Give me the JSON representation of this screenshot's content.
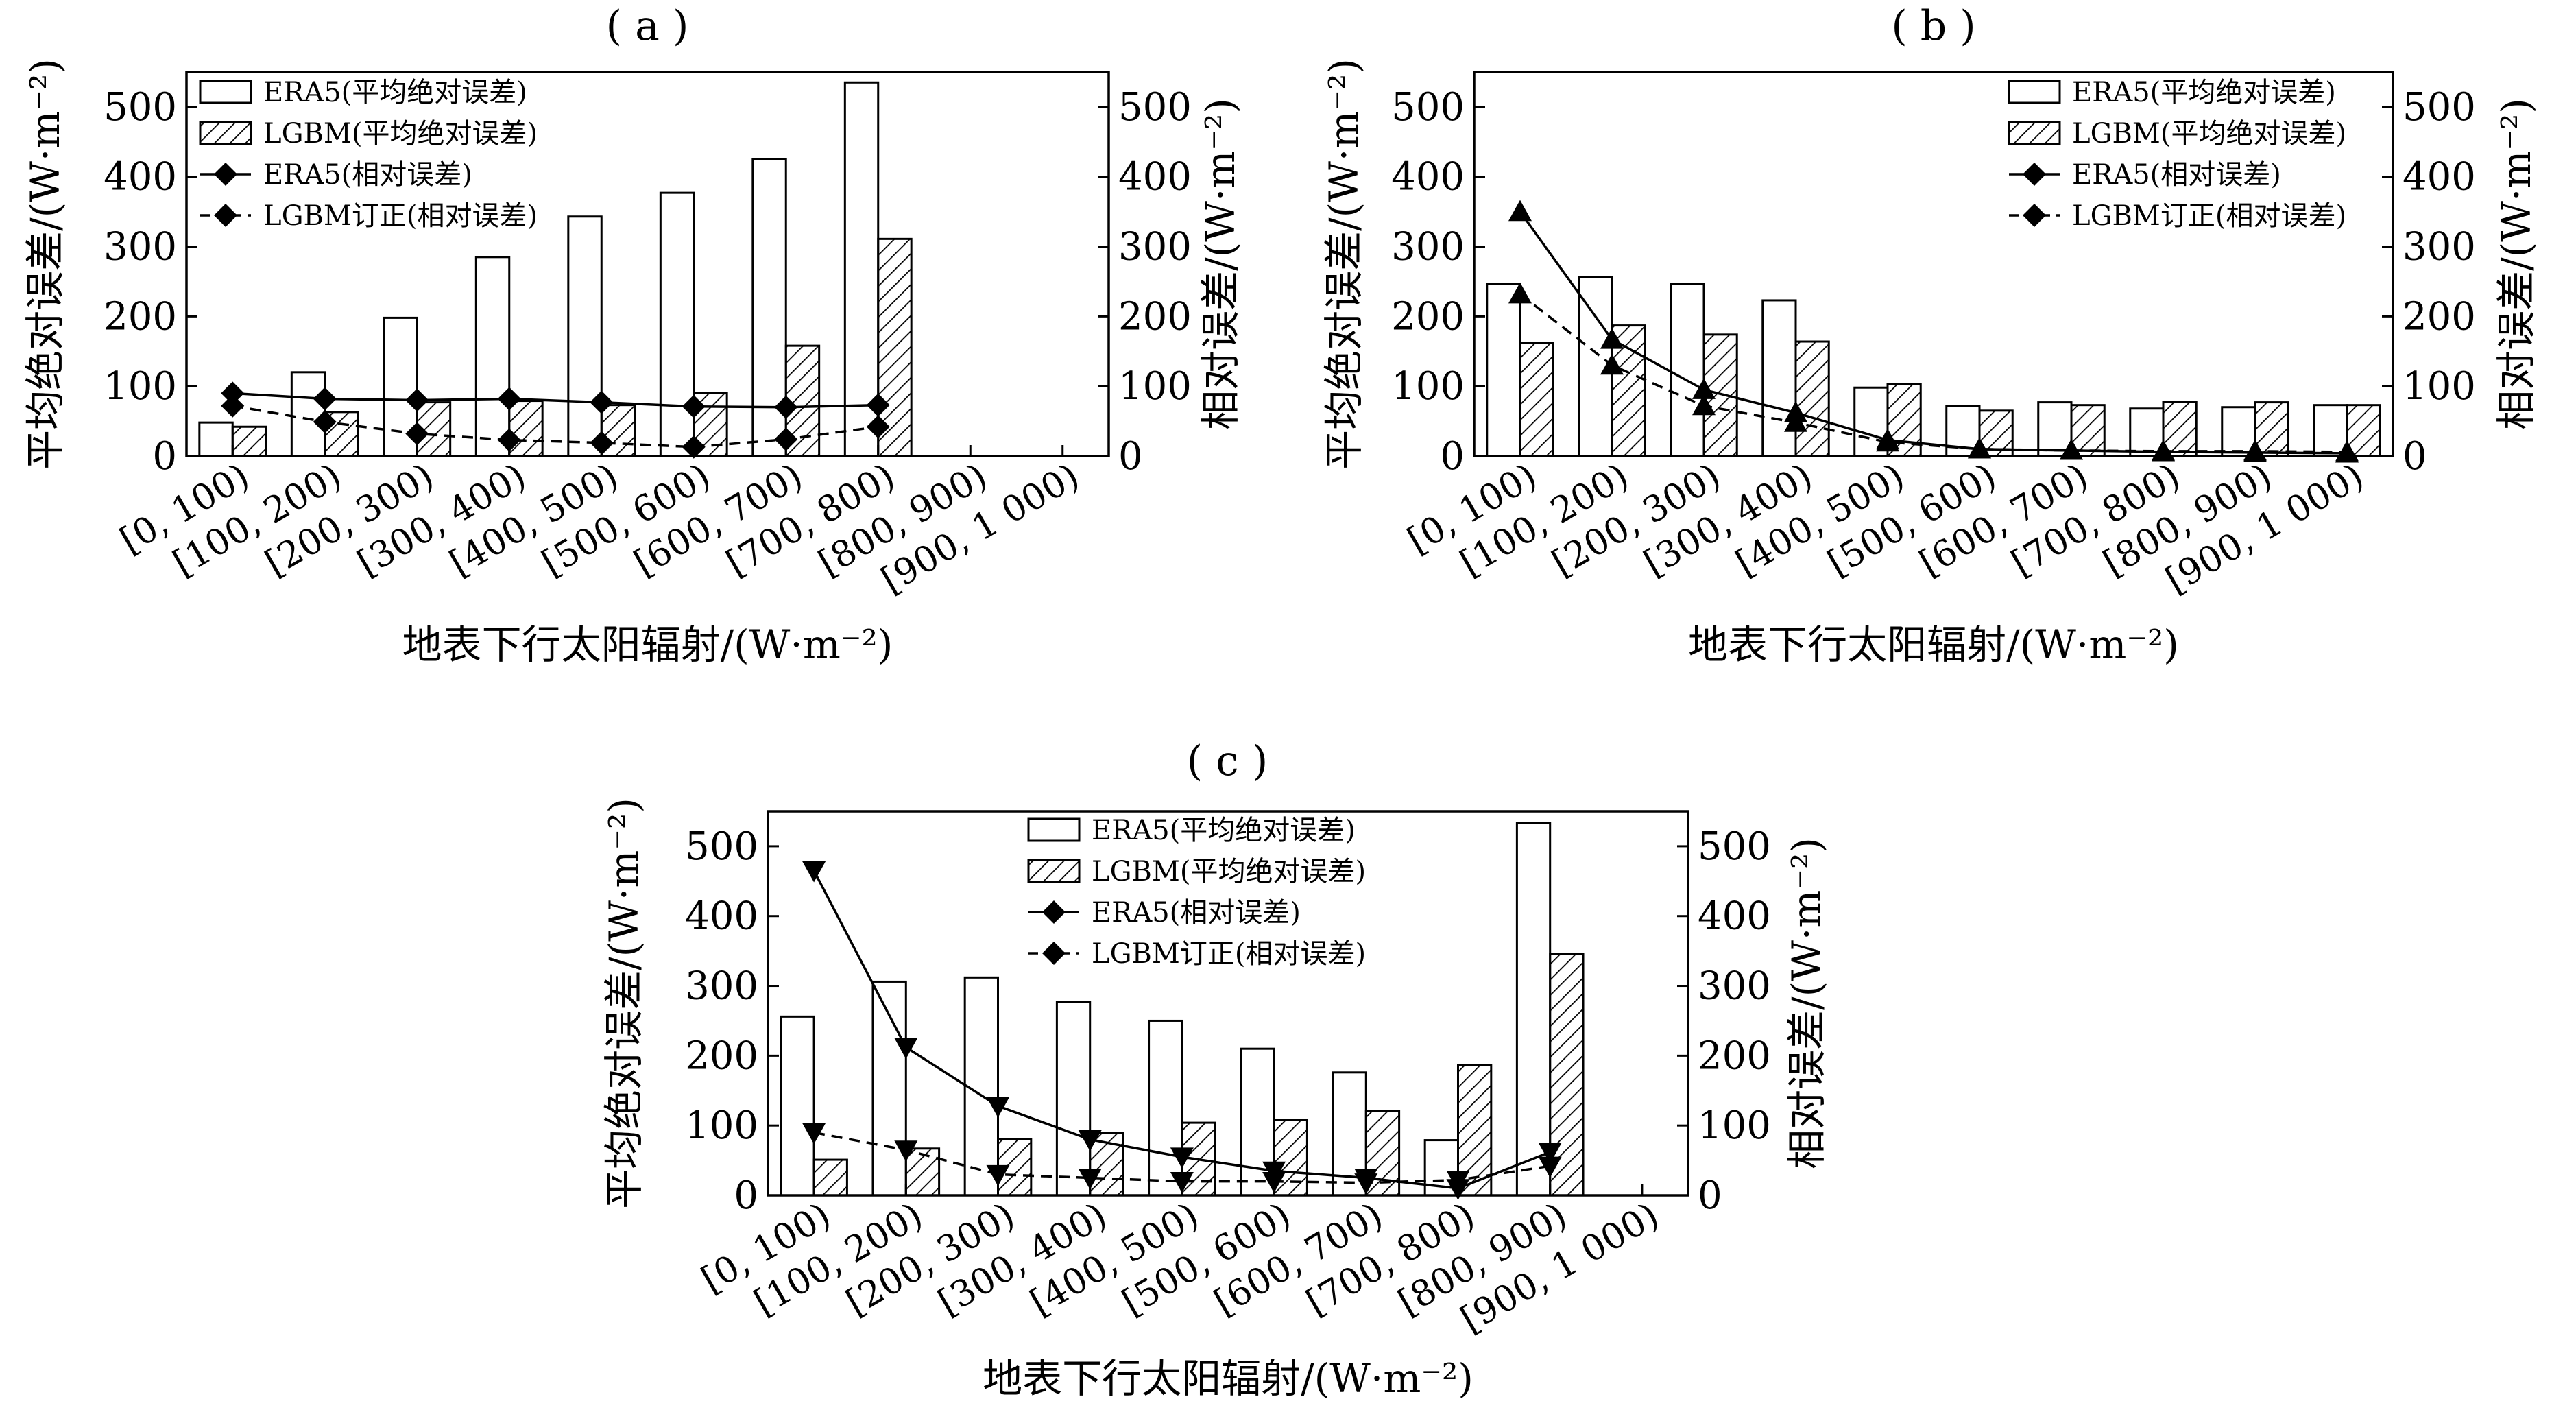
{
  "panels": [
    {
      "title": "( a )",
      "left_axis_label": "平均绝对误差/(W·m⁻²)",
      "right_axis_label": "相对误差/(W·m⁻²)",
      "x_axis_label": "地表下行太阳辐射/(W·m⁻²)",
      "legend_align": "left",
      "marker": "diamond"
    },
    {
      "title": "( b )",
      "left_axis_label": "平均绝对误差/(W·m⁻²)",
      "right_axis_label": "相对误差/(W·m⁻²)",
      "x_axis_label": "地表下行太阳辐射/(W·m⁻²)",
      "legend_align": "right",
      "marker": "triangle-up"
    },
    {
      "title": "( c )",
      "left_axis_label": "平均绝对误差/(W·m⁻²)",
      "right_axis_label": "相对误差/(W·m⁻²)",
      "x_axis_label": "地表下行太阳辐射/(W·m⁻²)",
      "legend_align": "left",
      "marker": "triangle-down"
    }
  ],
  "legend": {
    "era5_mae": "ERA5(平均绝对误差)",
    "lgbm_mae": "LGBM(平均绝对误差)",
    "era5_rel": "ERA5(相对误差)",
    "lgbm_rel": "LGBM订正(相对误差)"
  },
  "chart_data": [
    {
      "type": "bar",
      "title": "( a )",
      "categories": [
        "[0, 100)",
        "[100, 200)",
        "[200, 300)",
        "[300, 400)",
        "[400, 500)",
        "[500, 600)",
        "[600, 700)",
        "[700, 800)",
        "[800, 900)",
        "[900, 1 000)"
      ],
      "ylim": [
        0,
        550
      ],
      "y2lim": [
        0,
        550
      ],
      "yticks": [
        0,
        100,
        200,
        300,
        400,
        500
      ],
      "xlabel": "地表下行太阳辐射/(W·m⁻²)",
      "ylabel": "平均绝对误差/(W·m⁻²)",
      "y2label": "相对误差/(W·m⁻²)",
      "series": [
        {
          "name": "ERA5(平均绝对误差)",
          "kind": "bar",
          "values": [
            48,
            120,
            198,
            285,
            343,
            377,
            425,
            535,
            null,
            null
          ]
        },
        {
          "name": "LGBM(平均绝对误差)",
          "kind": "bar",
          "values": [
            42,
            63,
            77,
            79,
            73,
            90,
            158,
            311,
            null,
            null
          ]
        },
        {
          "name": "ERA5(相对误差)",
          "kind": "line",
          "values": [
            90,
            82,
            80,
            82,
            77,
            71,
            70,
            73,
            null,
            null
          ]
        },
        {
          "name": "LGBM订正(相对误差)",
          "kind": "line",
          "values": [
            72,
            49,
            32,
            23,
            19,
            13,
            24,
            42,
            null,
            null
          ]
        }
      ]
    },
    {
      "type": "bar",
      "title": "( b )",
      "categories": [
        "[0, 100)",
        "[100, 200)",
        "[200, 300)",
        "[300, 400)",
        "[400, 500)",
        "[500, 600)",
        "[600, 700)",
        "[700, 800)",
        "[800, 900)",
        "[900, 1 000)"
      ],
      "ylim": [
        0,
        550
      ],
      "y2lim": [
        0,
        550
      ],
      "yticks": [
        0,
        100,
        200,
        300,
        400,
        500
      ],
      "xlabel": "地表下行太阳辐射/(W·m⁻²)",
      "ylabel": "平均绝对误差/(W·m⁻²)",
      "y2label": "相对误差/(W·m⁻²)",
      "series": [
        {
          "name": "ERA5(平均绝对误差)",
          "kind": "bar",
          "values": [
            247,
            256,
            247,
            223,
            98,
            72,
            77,
            68,
            70,
            73
          ]
        },
        {
          "name": "LGBM(平均绝对误差)",
          "kind": "bar",
          "values": [
            162,
            187,
            174,
            164,
            103,
            65,
            73,
            78,
            77,
            73
          ]
        },
        {
          "name": "ERA5(相对误差)",
          "kind": "line",
          "values": [
            350,
            167,
            95,
            62,
            23,
            10,
            8,
            6,
            5,
            4
          ]
        },
        {
          "name": "LGBM订正(相对误差)",
          "kind": "line",
          "values": [
            232,
            130,
            72,
            48,
            20,
            10,
            8,
            7,
            7,
            6
          ]
        }
      ]
    },
    {
      "type": "bar",
      "title": "( c )",
      "categories": [
        "[0, 100)",
        "[100, 200)",
        "[200, 300)",
        "[300, 400)",
        "[400, 500)",
        "[500, 600)",
        "[600, 700)",
        "[700, 800)",
        "[800, 900)",
        "[900, 1 000)"
      ],
      "ylim": [
        0,
        550
      ],
      "y2lim": [
        0,
        550
      ],
      "yticks": [
        0,
        100,
        200,
        300,
        400,
        500
      ],
      "xlabel": "地表下行太阳辐射/(W·m⁻²)",
      "ylabel": "平均绝对误差/(W·m⁻²)",
      "y2label": "相对误差/(W·m⁻²)",
      "series": [
        {
          "name": "ERA5(平均绝对误差)",
          "kind": "bar",
          "values": [
            256,
            306,
            312,
            277,
            250,
            210,
            176,
            79,
            533,
            null
          ]
        },
        {
          "name": "LGBM(平均绝对误差)",
          "kind": "bar",
          "values": [
            51,
            67,
            81,
            89,
            104,
            108,
            121,
            187,
            346,
            null
          ]
        },
        {
          "name": "ERA5(相对误差)",
          "kind": "line",
          "values": [
            465,
            212,
            128,
            80,
            55,
            35,
            25,
            10,
            62,
            null
          ]
        },
        {
          "name": "LGBM订正(相对误差)",
          "kind": "line",
          "values": [
            90,
            65,
            30,
            25,
            20,
            20,
            18,
            22,
            42,
            null
          ]
        }
      ]
    }
  ]
}
